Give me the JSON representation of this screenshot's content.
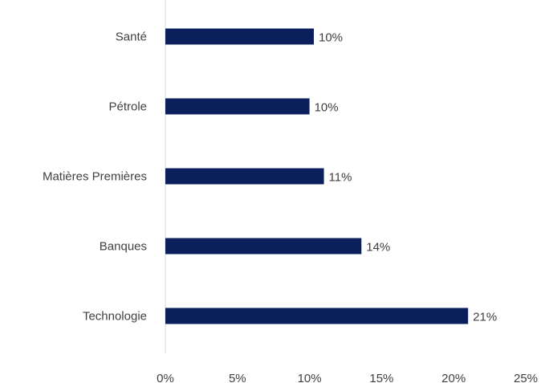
{
  "chart_data": {
    "type": "bar",
    "orientation": "horizontal",
    "title": "",
    "xlabel": "",
    "ylabel": "",
    "categories": [
      "Santé",
      "Pétrole",
      "Matières Premières",
      "Banques",
      "Technologie"
    ],
    "values": [
      10.3,
      10.0,
      11.0,
      13.6,
      21.0
    ],
    "data_labels": [
      "10%",
      "10%",
      "11%",
      "14%",
      "21%"
    ],
    "x_ticks": [
      "0%",
      "5%",
      "10%",
      "15%",
      "20%",
      "25%"
    ],
    "xlim": [
      0,
      25
    ],
    "grid": false,
    "legend": "none",
    "bar_color": "#0b1f5c",
    "axis_color": "#d9d9d9",
    "text_color": "#404040"
  }
}
